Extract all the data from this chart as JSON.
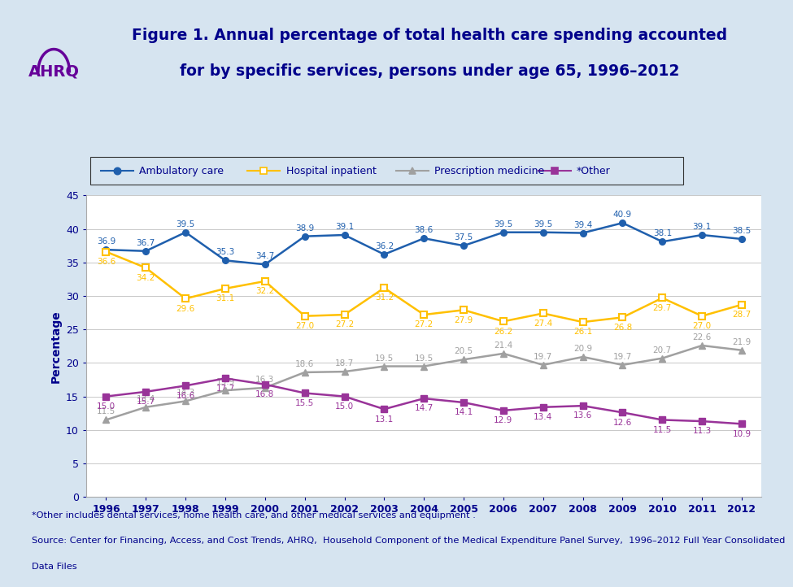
{
  "years": [
    1996,
    1997,
    1998,
    1999,
    2000,
    2001,
    2002,
    2003,
    2004,
    2005,
    2006,
    2007,
    2008,
    2009,
    2010,
    2011,
    2012
  ],
  "ambulatory": [
    36.9,
    36.7,
    39.5,
    35.3,
    34.7,
    38.9,
    39.1,
    36.2,
    38.6,
    37.5,
    39.5,
    39.5,
    39.4,
    40.9,
    38.1,
    39.1,
    38.5
  ],
  "hospital": [
    36.6,
    34.2,
    29.6,
    31.1,
    32.2,
    27.0,
    27.2,
    31.2,
    27.2,
    27.9,
    26.2,
    27.4,
    26.1,
    26.8,
    29.7,
    27.0,
    28.7
  ],
  "prescription": [
    11.5,
    13.4,
    14.3,
    15.9,
    16.3,
    18.6,
    18.7,
    19.5,
    19.5,
    20.5,
    21.4,
    19.7,
    20.9,
    19.7,
    20.7,
    22.6,
    21.9
  ],
  "other": [
    15.0,
    15.7,
    16.6,
    17.7,
    16.8,
    15.5,
    15.0,
    13.1,
    14.7,
    14.1,
    12.9,
    13.4,
    13.6,
    12.6,
    11.5,
    11.3,
    10.9
  ],
  "ambulatory_color": "#1F5FAD",
  "hospital_color": "#FFC000",
  "prescription_color": "#A0A0A0",
  "other_color": "#993399",
  "title_line1": "Figure 1. Annual percentage of total health care spending accounted",
  "title_line2": "for by specific services, persons under age 65, 1996–2012",
  "ylabel": "Percentage",
  "bg_color": "#D6E4F0",
  "plot_bg": "#FFFFFF",
  "footnote1": "*Other includes dental services, home health care, and other medical services and equipment .",
  "footnote2": "Source: Center for Financing, Access, and Cost Trends, AHRQ,  Household Component of the Medical Expenditure Panel Survey,  1996–2012 Full Year Consolidated",
  "footnote3": "Data Files",
  "text_color": "#00008B",
  "separator_color": "#7BAFD4",
  "grid_color": "#C8C8C8"
}
